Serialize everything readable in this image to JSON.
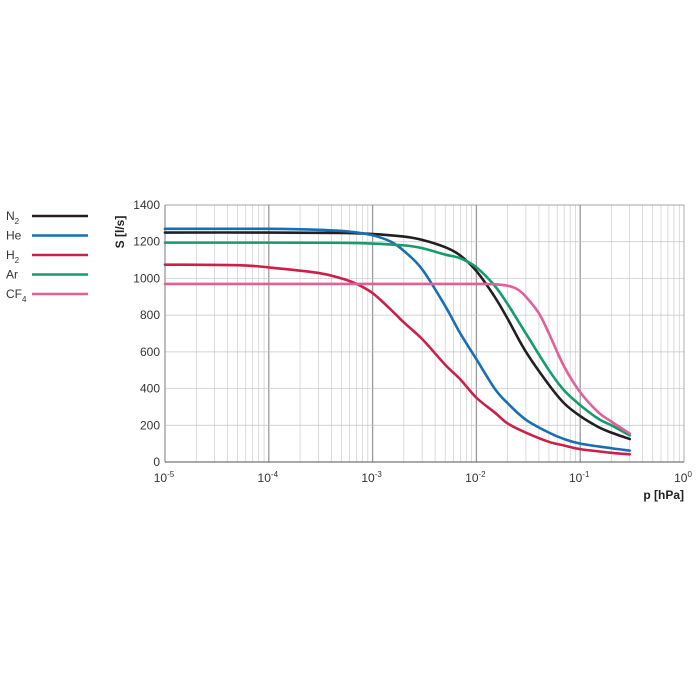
{
  "chart_data": {
    "type": "line",
    "x_scale": "log",
    "xlim": [
      1e-05,
      1
    ],
    "ylim": [
      0,
      1400
    ],
    "grid": true,
    "legend_position": "left",
    "xlabel": "p [hPa]",
    "ylabel": "S [l/s]",
    "x_ticks": [
      {
        "base": "10",
        "exp": "-5"
      },
      {
        "base": "10",
        "exp": "-4"
      },
      {
        "base": "10",
        "exp": "-3"
      },
      {
        "base": "10",
        "exp": "-2"
      },
      {
        "base": "10",
        "exp": "-1"
      },
      {
        "base": "10",
        "exp": "0"
      }
    ],
    "y_ticks": [
      "0",
      "200",
      "400",
      "600",
      "800",
      "1000",
      "1200",
      "1400"
    ],
    "series": [
      {
        "name": "N2",
        "label_main": "N",
        "label_sub": "2",
        "color": "#231f20",
        "points": [
          [
            1e-05,
            1250
          ],
          [
            0.0001,
            1250
          ],
          [
            0.0005,
            1248
          ],
          [
            0.001,
            1242
          ],
          [
            0.002,
            1228
          ],
          [
            0.003,
            1210
          ],
          [
            0.005,
            1170
          ],
          [
            0.007,
            1125
          ],
          [
            0.01,
            1040
          ],
          [
            0.015,
            900
          ],
          [
            0.02,
            780
          ],
          [
            0.03,
            600
          ],
          [
            0.05,
            420
          ],
          [
            0.07,
            320
          ],
          [
            0.1,
            250
          ],
          [
            0.15,
            190
          ],
          [
            0.2,
            160
          ],
          [
            0.3,
            125
          ]
        ]
      },
      {
        "name": "He",
        "label_main": "He",
        "label_sub": "",
        "color": "#1a6eb4",
        "points": [
          [
            1e-05,
            1270
          ],
          [
            0.0001,
            1270
          ],
          [
            0.0003,
            1265
          ],
          [
            0.0006,
            1255
          ],
          [
            0.001,
            1235
          ],
          [
            0.0015,
            1200
          ],
          [
            0.002,
            1150
          ],
          [
            0.003,
            1050
          ],
          [
            0.005,
            850
          ],
          [
            0.007,
            700
          ],
          [
            0.01,
            560
          ],
          [
            0.015,
            400
          ],
          [
            0.02,
            320
          ],
          [
            0.03,
            230
          ],
          [
            0.05,
            160
          ],
          [
            0.07,
            125
          ],
          [
            0.1,
            100
          ],
          [
            0.2,
            75
          ],
          [
            0.3,
            62
          ]
        ]
      },
      {
        "name": "H2",
        "label_main": "H",
        "label_sub": "2",
        "color": "#cc1f4a",
        "points": [
          [
            1e-05,
            1075
          ],
          [
            5e-05,
            1072
          ],
          [
            0.0001,
            1060
          ],
          [
            0.0003,
            1030
          ],
          [
            0.0005,
            1000
          ],
          [
            0.0007,
            970
          ],
          [
            0.001,
            920
          ],
          [
            0.0015,
            830
          ],
          [
            0.002,
            760
          ],
          [
            0.003,
            670
          ],
          [
            0.005,
            530
          ],
          [
            0.007,
            450
          ],
          [
            0.01,
            350
          ],
          [
            0.015,
            270
          ],
          [
            0.02,
            210
          ],
          [
            0.03,
            160
          ],
          [
            0.05,
            110
          ],
          [
            0.07,
            90
          ],
          [
            0.1,
            70
          ],
          [
            0.2,
            50
          ],
          [
            0.3,
            42
          ]
        ]
      },
      {
        "name": "Ar",
        "label_main": "Ar",
        "label_sub": "",
        "color": "#169c6c",
        "points": [
          [
            1e-05,
            1195
          ],
          [
            0.0001,
            1195
          ],
          [
            0.0005,
            1194
          ],
          [
            0.001,
            1190
          ],
          [
            0.002,
            1180
          ],
          [
            0.003,
            1165
          ],
          [
            0.005,
            1130
          ],
          [
            0.007,
            1110
          ],
          [
            0.01,
            1060
          ],
          [
            0.015,
            960
          ],
          [
            0.02,
            860
          ],
          [
            0.03,
            700
          ],
          [
            0.05,
            500
          ],
          [
            0.07,
            390
          ],
          [
            0.1,
            310
          ],
          [
            0.15,
            235
          ],
          [
            0.2,
            200
          ],
          [
            0.3,
            145
          ]
        ]
      },
      {
        "name": "CF4",
        "label_main": "CF",
        "label_sub": "4",
        "color": "#e0609a",
        "points": [
          [
            1e-05,
            970
          ],
          [
            0.0001,
            970
          ],
          [
            0.001,
            970
          ],
          [
            0.005,
            970
          ],
          [
            0.01,
            970
          ],
          [
            0.015,
            968
          ],
          [
            0.02,
            960
          ],
          [
            0.025,
            940
          ],
          [
            0.03,
            900
          ],
          [
            0.04,
            810
          ],
          [
            0.05,
            700
          ],
          [
            0.07,
            520
          ],
          [
            0.1,
            380
          ],
          [
            0.15,
            270
          ],
          [
            0.2,
            220
          ],
          [
            0.3,
            155
          ]
        ]
      }
    ]
  }
}
